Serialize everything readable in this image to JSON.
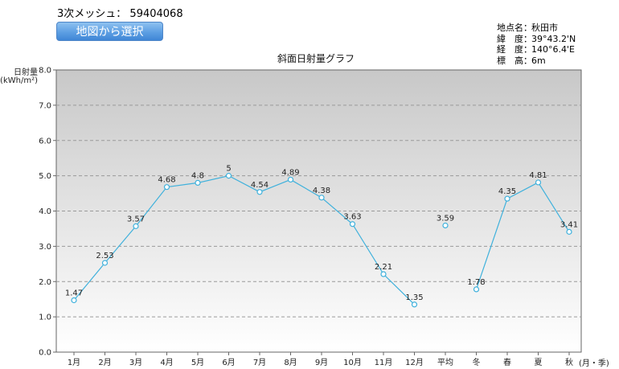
{
  "header": {
    "mesh_label": "3次メッシュ：",
    "mesh_code": "59404068",
    "map_button_label": "地図から選択"
  },
  "site_info": {
    "rows": [
      {
        "key": "地点名：",
        "value": "秋田市"
      },
      {
        "key": "緯　度：",
        "value": "39°43.2'N"
      },
      {
        "key": "経　度：",
        "value": "140°6.4'E"
      },
      {
        "key": "標　高：",
        "value": "6m"
      }
    ]
  },
  "chart_data": {
    "type": "line",
    "title": "斜面日射量グラフ",
    "ylabel": "日射量",
    "yunit": "(kWh/m²)",
    "xlabel": "(月・季)",
    "ylim": [
      0,
      8
    ],
    "yticks": [
      "0.0",
      "1.0",
      "2.0",
      "3.0",
      "4.0",
      "5.0",
      "6.0",
      "7.0",
      "8.0"
    ],
    "grid": true,
    "categories": [
      "1月",
      "2月",
      "3月",
      "4月",
      "5月",
      "6月",
      "7月",
      "8月",
      "9月",
      "10月",
      "11月",
      "12月",
      "平均",
      "冬",
      "春",
      "夏",
      "秋"
    ],
    "values": [
      1.47,
      2.53,
      3.57,
      4.68,
      4.8,
      5,
      4.54,
      4.89,
      4.38,
      3.63,
      2.21,
      1.35,
      3.59,
      1.78,
      4.35,
      4.81,
      3.41
    ],
    "labels": [
      "1.47",
      "2.53",
      "3.57",
      "4.68",
      "4.8",
      "5",
      "4.54",
      "4.89",
      "4.38",
      "3.63",
      "2.21",
      "1.35",
      "3.59",
      "1.78",
      "4.35",
      "4.81",
      "3.41"
    ],
    "segments": [
      [
        0,
        11
      ],
      [
        12,
        12
      ],
      [
        13,
        16
      ]
    ],
    "line_color": "#3fb1dc",
    "background_top": "#c8c8c8",
    "background_bottom": "#ffffff"
  }
}
